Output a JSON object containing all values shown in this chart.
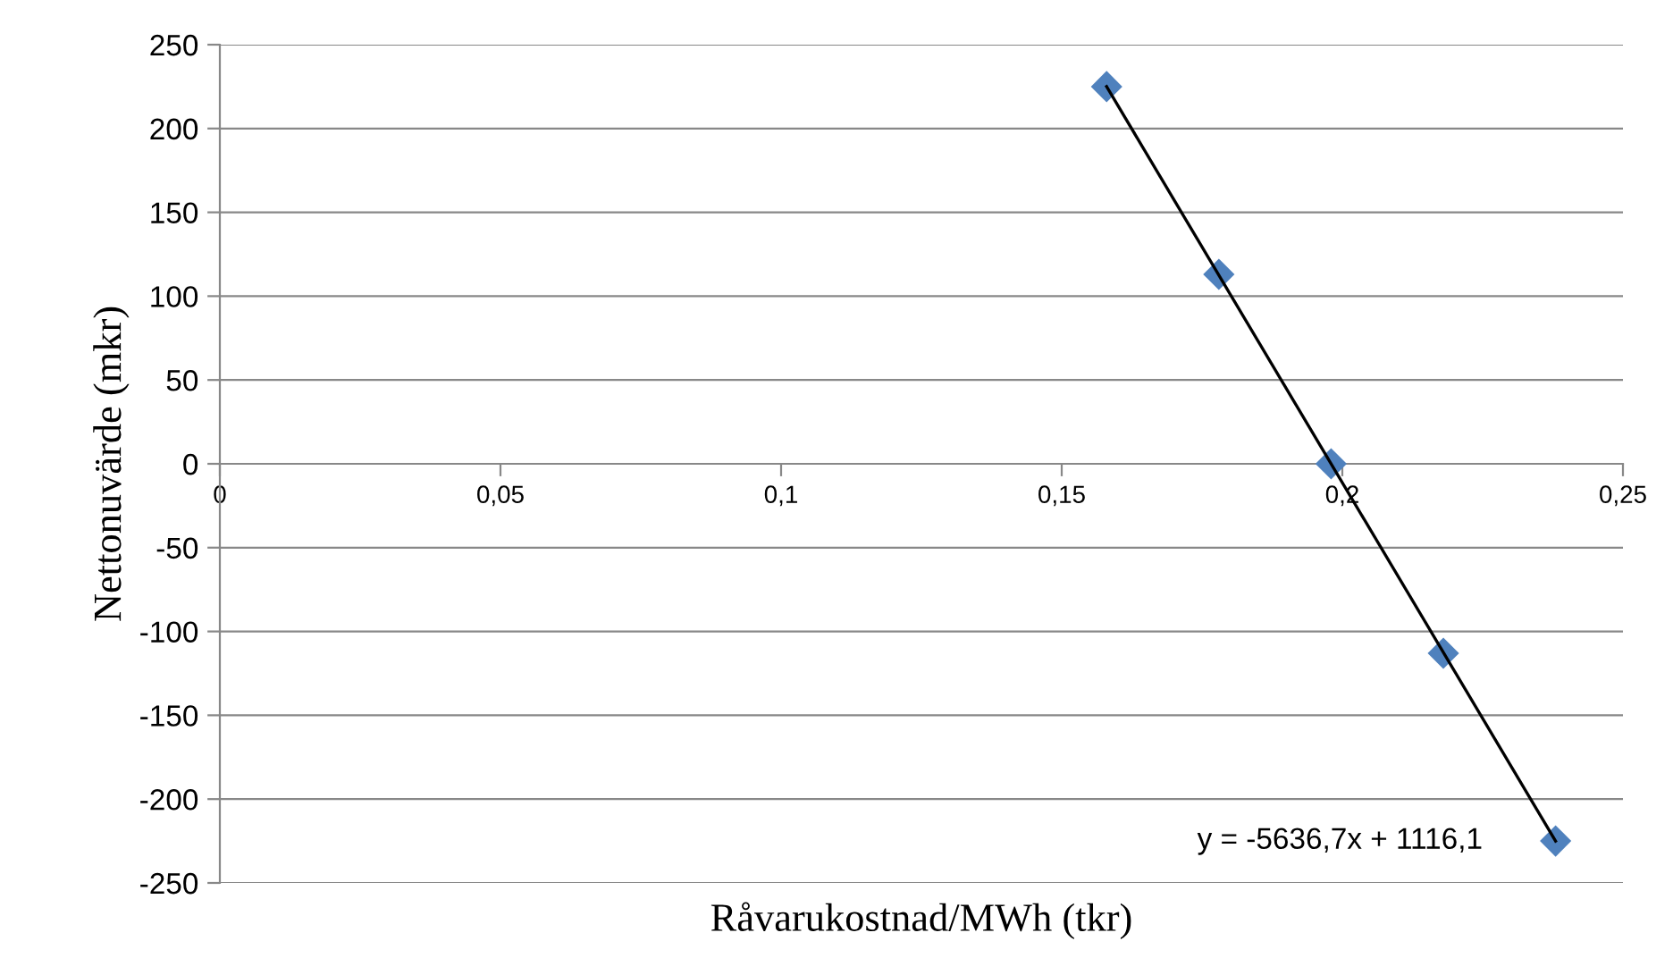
{
  "chart_data": {
    "type": "scatter",
    "xlabel": "Råvarukostnad/MWh (tkr)",
    "ylabel": "Nettonuvärde (mkr)",
    "series": [
      {
        "color": "#4f81bd",
        "marker": "diamond",
        "x": [
          0.158,
          0.178,
          0.198,
          0.218,
          0.238
        ],
        "values": [
          225,
          113,
          0,
          -113,
          -225
        ]
      },
      {
        "type": "line",
        "color": "#000000",
        "marker": "none",
        "line_style": "solid",
        "x": [
          0.158,
          0.238
        ],
        "values": [
          225,
          -225
        ]
      }
    ],
    "xlim": [
      0,
      0.25
    ],
    "xticks": [
      0,
      {
        "value": 0.05,
        "label": "0,05"
      },
      {
        "value": 0.1,
        "label": "0,1"
      },
      {
        "value": 0.15,
        "label": "0,15"
      },
      {
        "value": 0.2,
        "label": "0,2"
      },
      {
        "value": 0.25,
        "label": "0,25"
      }
    ],
    "ylim": [
      -250,
      250
    ],
    "yticks": [
      -250,
      -200,
      -150,
      -100,
      -50,
      0,
      50,
      100,
      150,
      200,
      250
    ],
    "grid": "y",
    "legend": false,
    "annotations": [
      "y = -5636,7x + 1116,1"
    ]
  }
}
